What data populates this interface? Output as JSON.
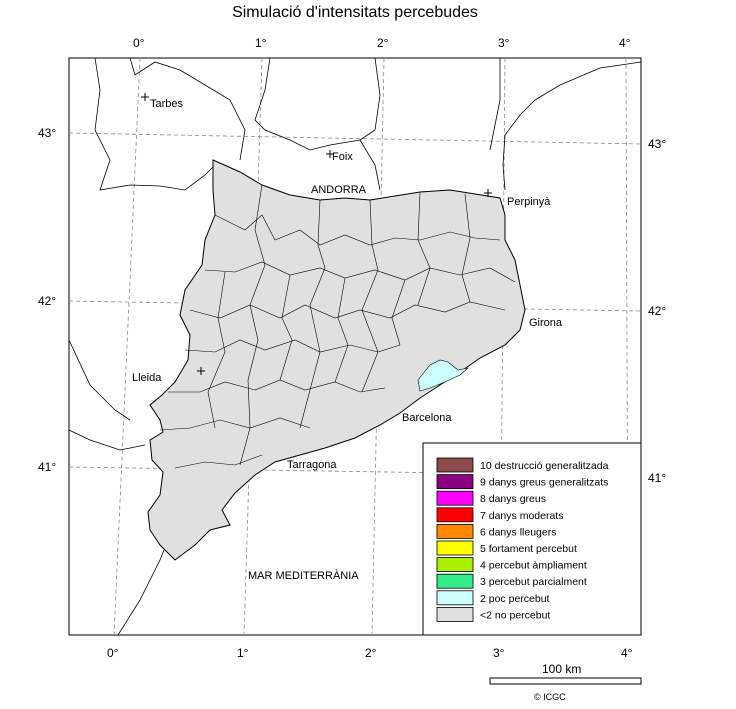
{
  "title": "Simulació d'intensitats percebudes",
  "top_ticks": [
    "0°",
    "1°",
    "2°",
    "3°",
    "4°"
  ],
  "bottom_ticks": [
    "0°",
    "1°",
    "2°",
    "3°",
    "4°"
  ],
  "left_ticks": [
    "43°",
    "42°",
    "41°"
  ],
  "right_ticks": [
    "43°",
    "42°",
    "41°"
  ],
  "places": {
    "tarbes": "Tarbes",
    "foix": "Foix",
    "andorra": "ANDORRA",
    "perpinya": "Perpinyà",
    "girona": "Girona",
    "lleida": "Lleida",
    "barcelona": "Barcelona",
    "tarragona": "Tarragona",
    "sea": "MAR MEDITERRÀNIA"
  },
  "legend": [
    {
      "label": "10 destrucció generalitzada",
      "color": "#8b4a4a"
    },
    {
      "label": "9 danys greus generalitzats",
      "color": "#8b0080"
    },
    {
      "label": "8 danys greus",
      "color": "#ff00ff"
    },
    {
      "label": "7 danys moderats",
      "color": "#ff0000"
    },
    {
      "label": "6 danys lleugers",
      "color": "#ff8800"
    },
    {
      "label": "5 fortament percebut",
      "color": "#ffff00"
    },
    {
      "label": "4 percebut àmpliament",
      "color": "#aaee00"
    },
    {
      "label": "3 percebut parcialment",
      "color": "#33ee88"
    },
    {
      "label": "2 poc percebut",
      "color": "#ccffff"
    },
    {
      "label": "<2 no percebut",
      "color": "#e0e0e0"
    }
  ],
  "scale_label": "100 km",
  "credit": "© ICGC"
}
